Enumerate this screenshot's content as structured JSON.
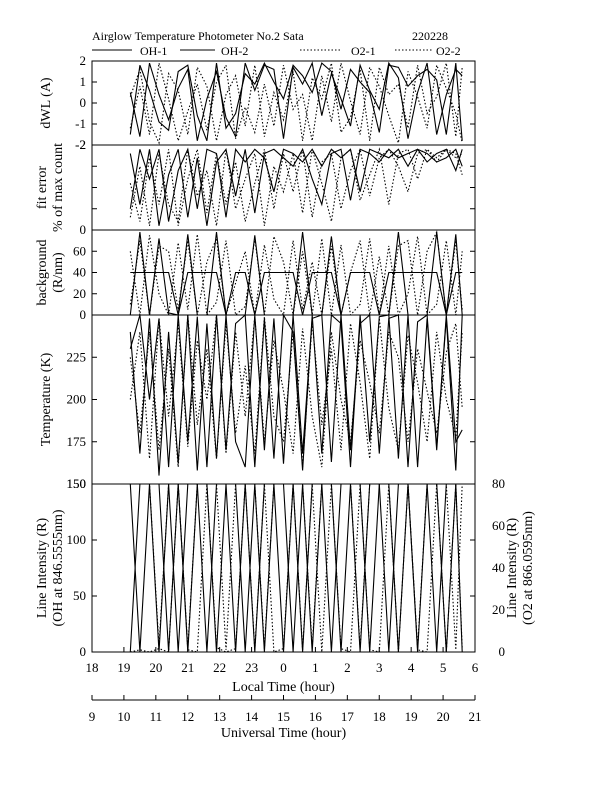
{
  "header": {
    "title": "Airglow Temperature Photometer No.2  Sata",
    "date": "220228"
  },
  "legend": {
    "items": [
      {
        "label": "OH-1",
        "style": "solid"
      },
      {
        "label": "OH-2",
        "style": "solid"
      },
      {
        "label": "O2-1",
        "style": "dotted"
      },
      {
        "label": "O2-2",
        "style": "dotted"
      }
    ]
  },
  "x_axes": {
    "local": {
      "title": "Local Time (hour)",
      "ticks": [
        18,
        19,
        20,
        21,
        22,
        23,
        0,
        1,
        2,
        3,
        4,
        5,
        6
      ]
    },
    "universal": {
      "title": "Universal Time (hour)",
      "ticks": [
        9,
        10,
        11,
        12,
        13,
        14,
        15,
        16,
        17,
        18,
        19,
        20,
        21
      ]
    }
  },
  "chart_data": [
    {
      "type": "line",
      "panel": "dwl",
      "ylabel": "dWL (A)",
      "ylim": [
        -2,
        2
      ],
      "yticks": [
        -2,
        -1,
        0,
        1,
        2
      ],
      "x": [
        10.2,
        10.5,
        10.8,
        11.1,
        11.4,
        11.7,
        12.0,
        12.3,
        12.6,
        12.9,
        13.2,
        13.5,
        13.8,
        14.1,
        14.4,
        14.7,
        15.0,
        15.3,
        15.6,
        15.9,
        16.2,
        16.5,
        16.8,
        17.1,
        17.4,
        17.7,
        18.0,
        18.3,
        18.6,
        18.9,
        19.2,
        19.5,
        19.8,
        20.1,
        20.4,
        20.6
      ],
      "series": [
        {
          "name": "OH-1",
          "style": "solid",
          "values": [
            -1.5,
            1.8,
            0.6,
            -0.9,
            -1.3,
            1.5,
            1.8,
            -0.6,
            -1.8,
            1.9,
            -1.2,
            -0.5,
            1.4,
            0.9,
            1.9,
            1.0,
            0.2,
            1.8,
            1.3,
            0.5,
            1.9,
            1.5,
            -0.3,
            1.6,
            1.0,
            0.5,
            -1.4,
            1.8,
            1.7,
            0.8,
            1.3,
            1.6,
            1.1,
            -1.5,
            1.9,
            -1.8
          ]
        },
        {
          "name": "OH-2",
          "style": "solid",
          "values": [
            0.5,
            -1.6,
            1.9,
            0.4,
            -0.8,
            0.7,
            1.6,
            -1.8,
            0.2,
            1.5,
            -0.7,
            -1.6,
            1.9,
            0.6,
            1.8,
            1.6,
            -1.7,
            1.7,
            0.9,
            1.9,
            -0.6,
            1.4,
            0.2,
            -1.1,
            1.8,
            0.6,
            -0.3,
            1.9,
            1.2,
            -1.7,
            0.5,
            1.9,
            -1.5,
            0.4,
            1.6,
            1.3
          ]
        },
        {
          "name": "O2-1",
          "style": "dotted",
          "values": [
            -1.2,
            0.8,
            -1.5,
            1.9,
            0.2,
            -1.8,
            -0.4,
            0.9,
            -1.3,
            1.0,
            1.8,
            -1.7,
            -0.2,
            -1.4,
            0.9,
            -1.1,
            1.8,
            -0.3,
            0.4,
            -1.8,
            1.3,
            -0.9,
            1.9,
            0.1,
            -1.5,
            1.7,
            0.8,
            -0.6,
            -1.9,
            1.5,
            0.3,
            -1.2,
            1.8,
            0.7,
            -0.5,
            -1.9
          ]
        },
        {
          "name": "O2-2",
          "style": "dotted",
          "values": [
            0.3,
            1.6,
            -0.9,
            -1.9,
            1.4,
            0.6,
            -1.5,
            1.7,
            0.8,
            -1.8,
            0.4,
            1.3,
            -1.1,
            1.8,
            -1.6,
            0.5,
            -0.8,
            1.5,
            -1.8,
            1.2,
            0.2,
            1.9,
            -1.4,
            -0.7,
            1.6,
            -1.8,
            1.7,
            0.4,
            0.9,
            -1.2,
            1.8,
            -0.5,
            0.3,
            1.9,
            -1.6,
            1.7
          ]
        }
      ]
    },
    {
      "type": "line",
      "panel": "fit_error",
      "ylabel": "fit error",
      "ylabel2": "% of max count",
      "ylim": [
        0,
        2
      ],
      "yticks": [
        0,
        0.5,
        1,
        1.5,
        2
      ],
      "ytick_labels": [
        "0",
        "",
        "",
        "",
        "-2"
      ],
      "x": [
        10.2,
        10.5,
        10.8,
        11.1,
        11.4,
        11.7,
        12.0,
        12.3,
        12.6,
        12.9,
        13.2,
        13.5,
        13.8,
        14.1,
        14.4,
        14.7,
        15.0,
        15.3,
        15.6,
        15.9,
        16.2,
        16.5,
        16.8,
        17.1,
        17.4,
        17.7,
        18.0,
        18.3,
        18.6,
        18.9,
        19.2,
        19.5,
        19.8,
        20.1,
        20.4,
        20.6
      ],
      "series": [
        {
          "name": "OH-1",
          "style": "solid",
          "values": [
            1.8,
            0.6,
            1.9,
            0.1,
            1.3,
            1.9,
            0.3,
            1.7,
            0.1,
            1.6,
            1.9,
            0.8,
            1.9,
            0.4,
            1.8,
            1.9,
            1.7,
            1.5,
            1.9,
            1.2,
            0.6,
            1.8,
            1.9,
            0.7,
            1.9,
            1.8,
            1.6,
            1.9,
            1.7,
            1.8,
            1.9,
            1.6,
            1.8,
            1.9,
            1.4,
            1.9
          ]
        },
        {
          "name": "OH-2",
          "style": "solid",
          "values": [
            0.5,
            1.9,
            1.2,
            1.9,
            0.2,
            1.4,
            1.9,
            0.5,
            1.9,
            1.8,
            0.3,
            1.9,
            1.6,
            1.9,
            1.7,
            0.9,
            1.9,
            1.8,
            1.6,
            1.9,
            1.5,
            1.9,
            1.7,
            1.9,
            0.9,
            1.9,
            1.8,
            1.7,
            1.9,
            1.5,
            1.9,
            1.8,
            1.6,
            1.7,
            1.9,
            1.5
          ]
        },
        {
          "name": "O2-1",
          "style": "dotted",
          "values": [
            0.3,
            1.5,
            0.1,
            1.8,
            0.6,
            0.2,
            1.9,
            0.8,
            1.4,
            0.1,
            1.9,
            0.5,
            1.2,
            1.8,
            0.1,
            1.5,
            0.9,
            1.8,
            0.4,
            1.9,
            1.1,
            0.2,
            1.7,
            1.9,
            0.7,
            1.3,
            1.9,
            0.6,
            1.8,
            1.9,
            1.2,
            1.9,
            1.7,
            1.9,
            1.8,
            1.3
          ]
        },
        {
          "name": "O2-2",
          "style": "dotted",
          "values": [
            1.1,
            0.2,
            1.7,
            0.6,
            1.9,
            0.1,
            1.2,
            1.9,
            0.4,
            1.8,
            0.6,
            1.6,
            0.2,
            1.1,
            1.9,
            0.5,
            1.8,
            0.9,
            1.9,
            0.3,
            1.6,
            1.8,
            0.5,
            1.4,
            1.9,
            0.8,
            1.7,
            1.9,
            1.5,
            0.9,
            1.8,
            1.9,
            1.6,
            1.9,
            1.7,
            1.8
          ]
        }
      ]
    },
    {
      "type": "line",
      "panel": "background",
      "ylabel": "background",
      "ylabel2": "(R/nm)",
      "ylim": [
        0,
        80
      ],
      "yticks": [
        0,
        20,
        40,
        60
      ],
      "x": [
        10.2,
        10.5,
        10.8,
        11.1,
        11.4,
        11.7,
        12.0,
        12.3,
        12.6,
        12.9,
        13.2,
        13.5,
        13.8,
        14.1,
        14.4,
        14.7,
        15.0,
        15.3,
        15.6,
        15.9,
        16.2,
        16.5,
        16.8,
        17.1,
        17.4,
        17.7,
        18.0,
        18.3,
        18.6,
        18.9,
        19.2,
        19.5,
        19.8,
        20.1,
        20.4,
        20.6
      ],
      "series": [
        {
          "name": "OH-1",
          "style": "solid",
          "values": [
            40,
            40,
            40,
            40,
            40,
            0,
            40,
            40,
            40,
            40,
            0,
            40,
            40,
            0,
            40,
            40,
            40,
            40,
            0,
            40,
            40,
            40,
            0,
            40,
            40,
            40,
            0,
            40,
            40,
            40,
            40,
            40,
            40,
            0,
            40,
            40
          ]
        },
        {
          "name": "OH-2",
          "style": "solid",
          "values": [
            0,
            78,
            0,
            72,
            2,
            0,
            76,
            0,
            0,
            78,
            0,
            0,
            0,
            75,
            0,
            0,
            0,
            0,
            78,
            0,
            0,
            74,
            0,
            0,
            0,
            0,
            0,
            0,
            78,
            0,
            0,
            0,
            78,
            0,
            76,
            0
          ]
        },
        {
          "name": "O2-1",
          "style": "dotted",
          "values": [
            10,
            70,
            0,
            65,
            60,
            5,
            70,
            0,
            50,
            72,
            0,
            30,
            60,
            0,
            66,
            15,
            0,
            70,
            5,
            50,
            0,
            65,
            0,
            40,
            70,
            0,
            55,
            0,
            65,
            70,
            0,
            60,
            78,
            0,
            70,
            5
          ]
        },
        {
          "name": "O2-2",
          "style": "dotted",
          "values": [
            60,
            0,
            75,
            20,
            0,
            68,
            5,
            76,
            0,
            12,
            70,
            0,
            8,
            72,
            0,
            74,
            50,
            0,
            60,
            0,
            72,
            0,
            66,
            0,
            10,
            72,
            0,
            65,
            0,
            20,
            74,
            0,
            10,
            70,
            0,
            60
          ]
        }
      ]
    },
    {
      "type": "line",
      "panel": "temperature",
      "ylabel": "Temperature (K)",
      "ylim": [
        150,
        250
      ],
      "yticks": [
        150,
        175,
        200,
        225
      ],
      "x": [
        10.2,
        10.5,
        10.8,
        11.1,
        11.4,
        11.7,
        12.0,
        12.3,
        12.6,
        12.9,
        13.2,
        13.5,
        13.8,
        14.1,
        14.4,
        14.7,
        15.0,
        15.3,
        15.6,
        15.9,
        16.2,
        16.5,
        16.8,
        17.1,
        17.4,
        17.7,
        18.0,
        18.3,
        18.6,
        18.9,
        19.2,
        19.5,
        19.8,
        20.1,
        20.4,
        20.6
      ],
      "series": [
        {
          "name": "OH-1",
          "style": "solid",
          "values": [
            230,
            250,
            200,
            248,
            160,
            250,
            175,
            249,
            160,
            250,
            170,
            245,
            250,
            160,
            248,
            165,
            250,
            240,
            158,
            250,
            168,
            250,
            245,
            160,
            250,
            175,
            249,
            250,
            165,
            250,
            160,
            248,
            170,
            250,
            175,
            182
          ]
        },
        {
          "name": "OH-2",
          "style": "solid",
          "values": [
            240,
            168,
            248,
            155,
            240,
            162,
            250,
            158,
            245,
            165,
            250,
            175,
            160,
            250,
            170,
            248,
            162,
            250,
            168,
            248,
            250,
            163,
            250,
            170,
            245,
            250,
            168,
            248,
            250,
            160,
            246,
            250,
            172,
            248,
            158,
            250
          ]
        },
        {
          "name": "O2-1",
          "style": "dotted",
          "values": [
            225,
            180,
            240,
            170,
            230,
            160,
            250,
            185,
            230,
            165,
            245,
            180,
            220,
            168,
            249,
            190,
            175,
            240,
            160,
            246,
            185,
            230,
            170,
            245,
            210,
            165,
            248,
            195,
            170,
            238,
            210,
            175,
            240,
            200,
            178,
            240
          ]
        },
        {
          "name": "O2-2",
          "style": "dotted",
          "values": [
            200,
            240,
            165,
            248,
            190,
            245,
            172,
            235,
            200,
            250,
            168,
            240,
            190,
            249,
            175,
            235,
            205,
            168,
            242,
            190,
            160,
            240,
            200,
            175,
            235,
            210,
            180,
            240,
            225,
            175,
            230,
            205,
            180,
            228,
            245,
            195
          ]
        }
      ]
    },
    {
      "type": "line",
      "panel": "intensity",
      "ylabel": "Line Intensity (R)",
      "ylabel2": "(OH at 846.5555nm)",
      "y2label": "Line Intensity (R)",
      "y2label2": "(O2 at 866.0595nm)",
      "ylim": [
        0,
        150
      ],
      "yticks": [
        0,
        50,
        100,
        150
      ],
      "y2lim": [
        0,
        80
      ],
      "y2ticks": [
        0,
        20,
        40,
        60,
        80
      ],
      "x": [
        10.2,
        10.5,
        10.8,
        11.1,
        11.4,
        11.7,
        12.0,
        12.3,
        12.6,
        12.9,
        13.2,
        13.5,
        13.8,
        14.1,
        14.4,
        14.7,
        15.0,
        15.3,
        15.6,
        15.9,
        16.2,
        16.5,
        16.8,
        17.1,
        17.4,
        17.7,
        18.0,
        18.3,
        18.6,
        18.9,
        19.2,
        19.5,
        19.8,
        20.1,
        20.4,
        20.6
      ],
      "series": [
        {
          "name": "OH-1",
          "style": "solid",
          "values": [
            0,
            150,
            150,
            0,
            150,
            0,
            150,
            150,
            0,
            150,
            150,
            0,
            150,
            0,
            150,
            150,
            0,
            150,
            0,
            150,
            150,
            0,
            150,
            150,
            0,
            150,
            150,
            0,
            150,
            150,
            150,
            150,
            0,
            150,
            150,
            150
          ]
        },
        {
          "name": "OH-2",
          "style": "solid",
          "values": [
            150,
            0,
            150,
            150,
            0,
            150,
            0,
            150,
            150,
            0,
            150,
            150,
            0,
            150,
            0,
            150,
            150,
            0,
            150,
            0,
            150,
            150,
            0,
            150,
            150,
            0,
            150,
            150,
            0,
            150,
            0,
            150,
            150,
            0,
            150,
            0
          ]
        },
        {
          "name": "O2-1",
          "style": "dotted",
          "values": [
            0,
            2,
            0,
            3,
            0,
            150,
            2,
            0,
            150,
            4,
            0,
            3,
            150,
            2,
            150,
            0,
            3,
            150,
            2,
            150,
            0,
            150,
            3,
            0,
            150,
            2,
            0,
            150,
            0,
            150,
            2,
            0,
            150,
            0,
            150,
            3
          ]
        },
        {
          "name": "O2-2",
          "style": "dotted",
          "values": [
            150,
            160,
            150,
            5,
            150,
            150,
            3,
            150,
            150,
            150,
            2,
            150,
            150,
            150,
            3,
            150,
            150,
            150,
            150,
            4,
            150,
            150,
            150,
            150,
            3,
            150,
            150,
            150,
            150,
            150,
            3,
            150,
            150,
            150,
            2,
            150
          ]
        }
      ]
    }
  ]
}
